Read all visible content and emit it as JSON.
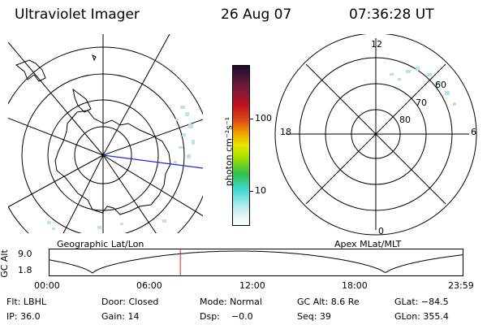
{
  "header": {
    "title": "Ultraviolet Imager",
    "date": "26 Aug 07",
    "time": "07:36:28 UT"
  },
  "left_panel": {
    "caption": "Geographic Lat/Lon"
  },
  "right_panel": {
    "caption": "Apex MLat/MLT",
    "mlt_labels": {
      "top": "12",
      "bottom": "0",
      "left": "18",
      "right": "6"
    },
    "lat_labels": [
      "60",
      "70",
      "80"
    ]
  },
  "colorbar": {
    "unit_label": "photon cm⁻²s⁻¹",
    "tick_labels": [
      "100",
      "10"
    ]
  },
  "timeline": {
    "ylabel": "GC Alt",
    "y_ticks": [
      "9.0",
      "1.8"
    ],
    "x_ticks": [
      "00:00",
      "06:00",
      "12:00",
      "18:00",
      "23:59"
    ],
    "marker_time_hours": 7.608
  },
  "info": {
    "row1": {
      "flt": "Flt: LBHL",
      "door": "Door: Closed",
      "mode": "Mode: Normal",
      "gc_alt": "GC Alt: 8.6 Re",
      "glat": "GLat: −84.5"
    },
    "row2": {
      "ip": "IP: 36.0",
      "gain": "Gain: 14",
      "dsp": "Dsp:    −0.0",
      "seq": "Seq: 39",
      "glon": "GLon: 355.4"
    }
  },
  "colors": {
    "track": "#1b2bd6",
    "marker": "#e02020",
    "speckle": "#b8e2e6"
  }
}
